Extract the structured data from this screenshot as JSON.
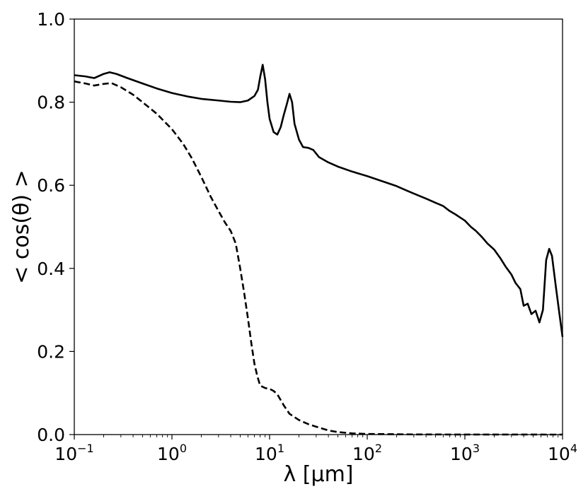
{
  "chart_data": {
    "type": "line",
    "xscale": "log",
    "xlim": [
      0.1,
      10000
    ],
    "ylim": [
      0.0,
      1.0
    ],
    "xlabel": "λ [μm]",
    "ylabel": "< cos(θ) >",
    "xticks": [
      {
        "value": 0.1,
        "base": "10",
        "exp": "−1"
      },
      {
        "value": 1,
        "base": "10",
        "exp": "0"
      },
      {
        "value": 10,
        "base": "10",
        "exp": "1"
      },
      {
        "value": 100,
        "base": "10",
        "exp": "2"
      },
      {
        "value": 1000,
        "base": "10",
        "exp": "3"
      },
      {
        "value": 10000,
        "base": "10",
        "exp": "4"
      }
    ],
    "yticks": [
      {
        "value": 0.0,
        "label": "0.0"
      },
      {
        "value": 0.2,
        "label": "0.2"
      },
      {
        "value": 0.4,
        "label": "0.4"
      },
      {
        "value": 0.6,
        "label": "0.6"
      },
      {
        "value": 0.8,
        "label": "0.8"
      },
      {
        "value": 1.0,
        "label": "1.0"
      }
    ],
    "grid": false,
    "series": [
      {
        "style": "solid",
        "color": "#000000",
        "points": [
          [
            0.1,
            0.865
          ],
          [
            0.13,
            0.862
          ],
          [
            0.16,
            0.858
          ],
          [
            0.2,
            0.868
          ],
          [
            0.23,
            0.872
          ],
          [
            0.27,
            0.868
          ],
          [
            0.35,
            0.858
          ],
          [
            0.5,
            0.845
          ],
          [
            0.7,
            0.833
          ],
          [
            1.0,
            0.822
          ],
          [
            1.5,
            0.813
          ],
          [
            2.0,
            0.808
          ],
          [
            3.0,
            0.804
          ],
          [
            4.0,
            0.801
          ],
          [
            5.0,
            0.8
          ],
          [
            6.0,
            0.804
          ],
          [
            7.0,
            0.815
          ],
          [
            7.6,
            0.83
          ],
          [
            8.0,
            0.86
          ],
          [
            8.5,
            0.89
          ],
          [
            9.0,
            0.855
          ],
          [
            9.5,
            0.8
          ],
          [
            10.0,
            0.76
          ],
          [
            11.0,
            0.728
          ],
          [
            12.0,
            0.722
          ],
          [
            13.0,
            0.74
          ],
          [
            14.0,
            0.77
          ],
          [
            15.0,
            0.795
          ],
          [
            16.0,
            0.82
          ],
          [
            17.0,
            0.8
          ],
          [
            18.0,
            0.748
          ],
          [
            20.0,
            0.71
          ],
          [
            22.0,
            0.692
          ],
          [
            25.0,
            0.69
          ],
          [
            28.0,
            0.685
          ],
          [
            32.0,
            0.668
          ],
          [
            40.0,
            0.655
          ],
          [
            50.0,
            0.645
          ],
          [
            70.0,
            0.633
          ],
          [
            100.0,
            0.622
          ],
          [
            150.0,
            0.608
          ],
          [
            200.0,
            0.598
          ],
          [
            250.0,
            0.588
          ],
          [
            300.0,
            0.58
          ],
          [
            400.0,
            0.568
          ],
          [
            500.0,
            0.558
          ],
          [
            600.0,
            0.55
          ],
          [
            700.0,
            0.538
          ],
          [
            800.0,
            0.53
          ],
          [
            900.0,
            0.522
          ],
          [
            1000.0,
            0.515
          ],
          [
            1150.0,
            0.5
          ],
          [
            1300.0,
            0.49
          ],
          [
            1500.0,
            0.475
          ],
          [
            1700.0,
            0.46
          ],
          [
            2000.0,
            0.445
          ],
          [
            2300.0,
            0.425
          ],
          [
            2600.0,
            0.405
          ],
          [
            3000.0,
            0.385
          ],
          [
            3300.0,
            0.365
          ],
          [
            3700.0,
            0.35
          ],
          [
            4000.0,
            0.31
          ],
          [
            4400.0,
            0.315
          ],
          [
            4800.0,
            0.29
          ],
          [
            5300.0,
            0.298
          ],
          [
            5800.0,
            0.27
          ],
          [
            6300.0,
            0.3
          ],
          [
            6800.0,
            0.42
          ],
          [
            7300.0,
            0.447
          ],
          [
            7800.0,
            0.43
          ],
          [
            8500.0,
            0.36
          ],
          [
            9300.0,
            0.29
          ],
          [
            10000.0,
            0.235
          ]
        ]
      },
      {
        "style": "dashed",
        "color": "#000000",
        "points": [
          [
            0.1,
            0.85
          ],
          [
            0.13,
            0.845
          ],
          [
            0.16,
            0.84
          ],
          [
            0.2,
            0.844
          ],
          [
            0.24,
            0.846
          ],
          [
            0.3,
            0.836
          ],
          [
            0.4,
            0.818
          ],
          [
            0.5,
            0.8
          ],
          [
            0.7,
            0.772
          ],
          [
            1.0,
            0.735
          ],
          [
            1.3,
            0.7
          ],
          [
            1.6,
            0.665
          ],
          [
            2.0,
            0.62
          ],
          [
            2.5,
            0.572
          ],
          [
            3.0,
            0.538
          ],
          [
            3.5,
            0.51
          ],
          [
            4.0,
            0.49
          ],
          [
            4.5,
            0.46
          ],
          [
            5.0,
            0.4
          ],
          [
            5.5,
            0.34
          ],
          [
            6.0,
            0.28
          ],
          [
            6.5,
            0.22
          ],
          [
            7.0,
            0.17
          ],
          [
            7.5,
            0.14
          ],
          [
            8.0,
            0.118
          ],
          [
            9.0,
            0.112
          ],
          [
            10.0,
            0.11
          ],
          [
            11.0,
            0.105
          ],
          [
            12.0,
            0.097
          ],
          [
            14.0,
            0.07
          ],
          [
            16.0,
            0.05
          ],
          [
            20.0,
            0.035
          ],
          [
            25.0,
            0.025
          ],
          [
            30.0,
            0.019
          ],
          [
            40.0,
            0.01
          ],
          [
            50.0,
            0.006
          ],
          [
            70.0,
            0.003
          ],
          [
            100.0,
            0.0015
          ],
          [
            300.0,
            0.0004
          ],
          [
            1000.0,
            0.0001
          ],
          [
            10000.0,
            0.0
          ]
        ]
      }
    ]
  }
}
